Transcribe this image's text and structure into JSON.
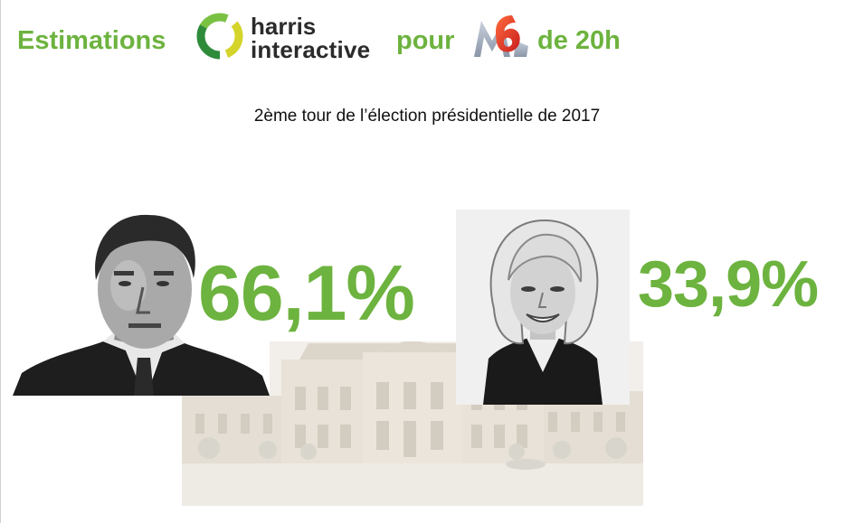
{
  "header": {
    "word_estimations": "Estimations",
    "harris_logo": {
      "line1": "harris",
      "line2": "interactive"
    },
    "word_pour": "pour",
    "m6_logo": {
      "text": "M6"
    },
    "word_de20h": "de 20h"
  },
  "subtitle": "2ème tour de l’élection présidentielle de 2017",
  "results": [
    {
      "percentage": "66,1%",
      "portrait": "macron-portrait"
    },
    {
      "percentage": "33,9%",
      "portrait": "le-pen-portrait"
    }
  ],
  "colors": {
    "accent_green": "#6db33f",
    "harris_green_dark": "#2e8b3a",
    "harris_yellow": "#d4d42a",
    "m6_red": "#e8322d",
    "m6_grey": "#9aa4b4"
  }
}
